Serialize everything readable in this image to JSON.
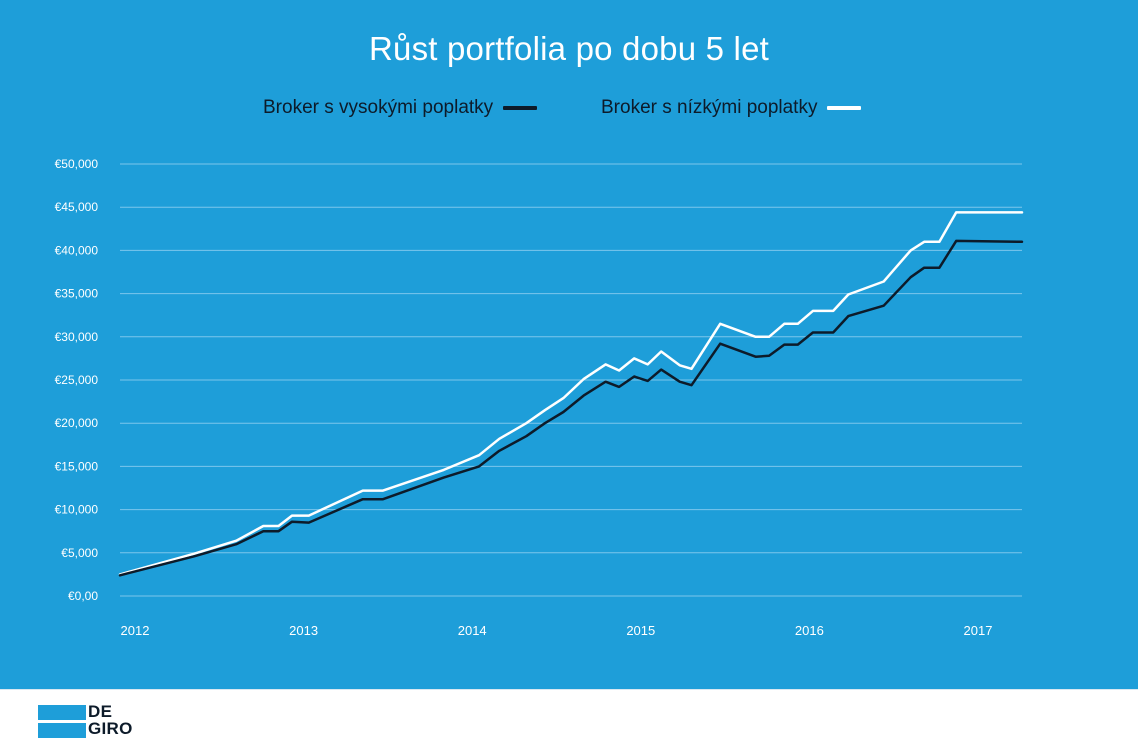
{
  "colors": {
    "background": "#1e9ed9",
    "grid": "#7cc6ec",
    "high_fee_line": "#0d1b2a",
    "low_fee_line": "#ffffff"
  },
  "logo": {
    "line1": "DE",
    "line2": "GIRO"
  },
  "chart_data": {
    "type": "line",
    "title": "Růst portfolia po dobu 5 let",
    "xlabel": "",
    "ylabel": "",
    "legend_position": "top-center",
    "grid": true,
    "xlim": [
      2012.0,
      2017.35
    ],
    "ylim": [
      0,
      50000
    ],
    "yticks": [
      0,
      5000,
      10000,
      15000,
      20000,
      25000,
      30000,
      35000,
      40000,
      45000,
      50000
    ],
    "ytick_labels": [
      "€0,00",
      "€5,000",
      "€10,000",
      "€15,000",
      "€20,000",
      "€25,000",
      "€30,000",
      "€35,000",
      "€40,000",
      "€45,000",
      "€50,000"
    ],
    "xticks": [
      2012,
      2013,
      2014,
      2015,
      2016,
      2017
    ],
    "xtick_labels": [
      "2012",
      "2013",
      "2014",
      "2015",
      "2016",
      "2017"
    ],
    "series": [
      {
        "name": "Broker s vysokými poplatky",
        "color": "#0d1b2a",
        "points": [
          [
            2012.0,
            2400
          ],
          [
            2012.44,
            4600
          ],
          [
            2012.69,
            6000
          ],
          [
            2012.85,
            7500
          ],
          [
            2012.94,
            7500
          ],
          [
            2013.02,
            8600
          ],
          [
            2013.12,
            8500
          ],
          [
            2013.44,
            11200
          ],
          [
            2013.56,
            11200
          ],
          [
            2013.92,
            13700
          ],
          [
            2014.13,
            15000
          ],
          [
            2014.25,
            16800
          ],
          [
            2014.41,
            18500
          ],
          [
            2014.52,
            20000
          ],
          [
            2014.63,
            21300
          ],
          [
            2014.75,
            23200
          ],
          [
            2014.88,
            24800
          ],
          [
            2014.96,
            24200
          ],
          [
            2015.05,
            25400
          ],
          [
            2015.13,
            24900
          ],
          [
            2015.21,
            26200
          ],
          [
            2015.32,
            24800
          ],
          [
            2015.39,
            24400
          ],
          [
            2015.56,
            29200
          ],
          [
            2015.77,
            27700
          ],
          [
            2015.85,
            27800
          ],
          [
            2015.94,
            29100
          ],
          [
            2016.02,
            29100
          ],
          [
            2016.11,
            30500
          ],
          [
            2016.23,
            30500
          ],
          [
            2016.32,
            32400
          ],
          [
            2016.53,
            33600
          ],
          [
            2016.69,
            36900
          ],
          [
            2016.77,
            38000
          ],
          [
            2016.86,
            38000
          ],
          [
            2016.96,
            41100
          ],
          [
            2017.35,
            41000
          ]
        ]
      },
      {
        "name": "Broker s nízkými poplatky",
        "color": "#ffffff",
        "points": [
          [
            2012.0,
            2500
          ],
          [
            2012.44,
            4900
          ],
          [
            2012.69,
            6400
          ],
          [
            2012.85,
            8100
          ],
          [
            2012.94,
            8100
          ],
          [
            2013.02,
            9300
          ],
          [
            2013.12,
            9300
          ],
          [
            2013.44,
            12200
          ],
          [
            2013.56,
            12200
          ],
          [
            2013.92,
            14600
          ],
          [
            2014.13,
            16300
          ],
          [
            2014.25,
            18200
          ],
          [
            2014.41,
            20000
          ],
          [
            2014.52,
            21500
          ],
          [
            2014.63,
            22900
          ],
          [
            2014.75,
            25100
          ],
          [
            2014.88,
            26800
          ],
          [
            2014.96,
            26100
          ],
          [
            2015.05,
            27500
          ],
          [
            2015.13,
            26800
          ],
          [
            2015.21,
            28300
          ],
          [
            2015.32,
            26700
          ],
          [
            2015.39,
            26300
          ],
          [
            2015.56,
            31500
          ],
          [
            2015.77,
            30000
          ],
          [
            2015.85,
            30000
          ],
          [
            2015.94,
            31500
          ],
          [
            2016.02,
            31500
          ],
          [
            2016.11,
            33000
          ],
          [
            2016.23,
            33000
          ],
          [
            2016.32,
            34900
          ],
          [
            2016.53,
            36400
          ],
          [
            2016.69,
            40000
          ],
          [
            2016.77,
            41000
          ],
          [
            2016.86,
            41000
          ],
          [
            2016.96,
            44400
          ],
          [
            2017.35,
            44400
          ]
        ]
      }
    ]
  }
}
